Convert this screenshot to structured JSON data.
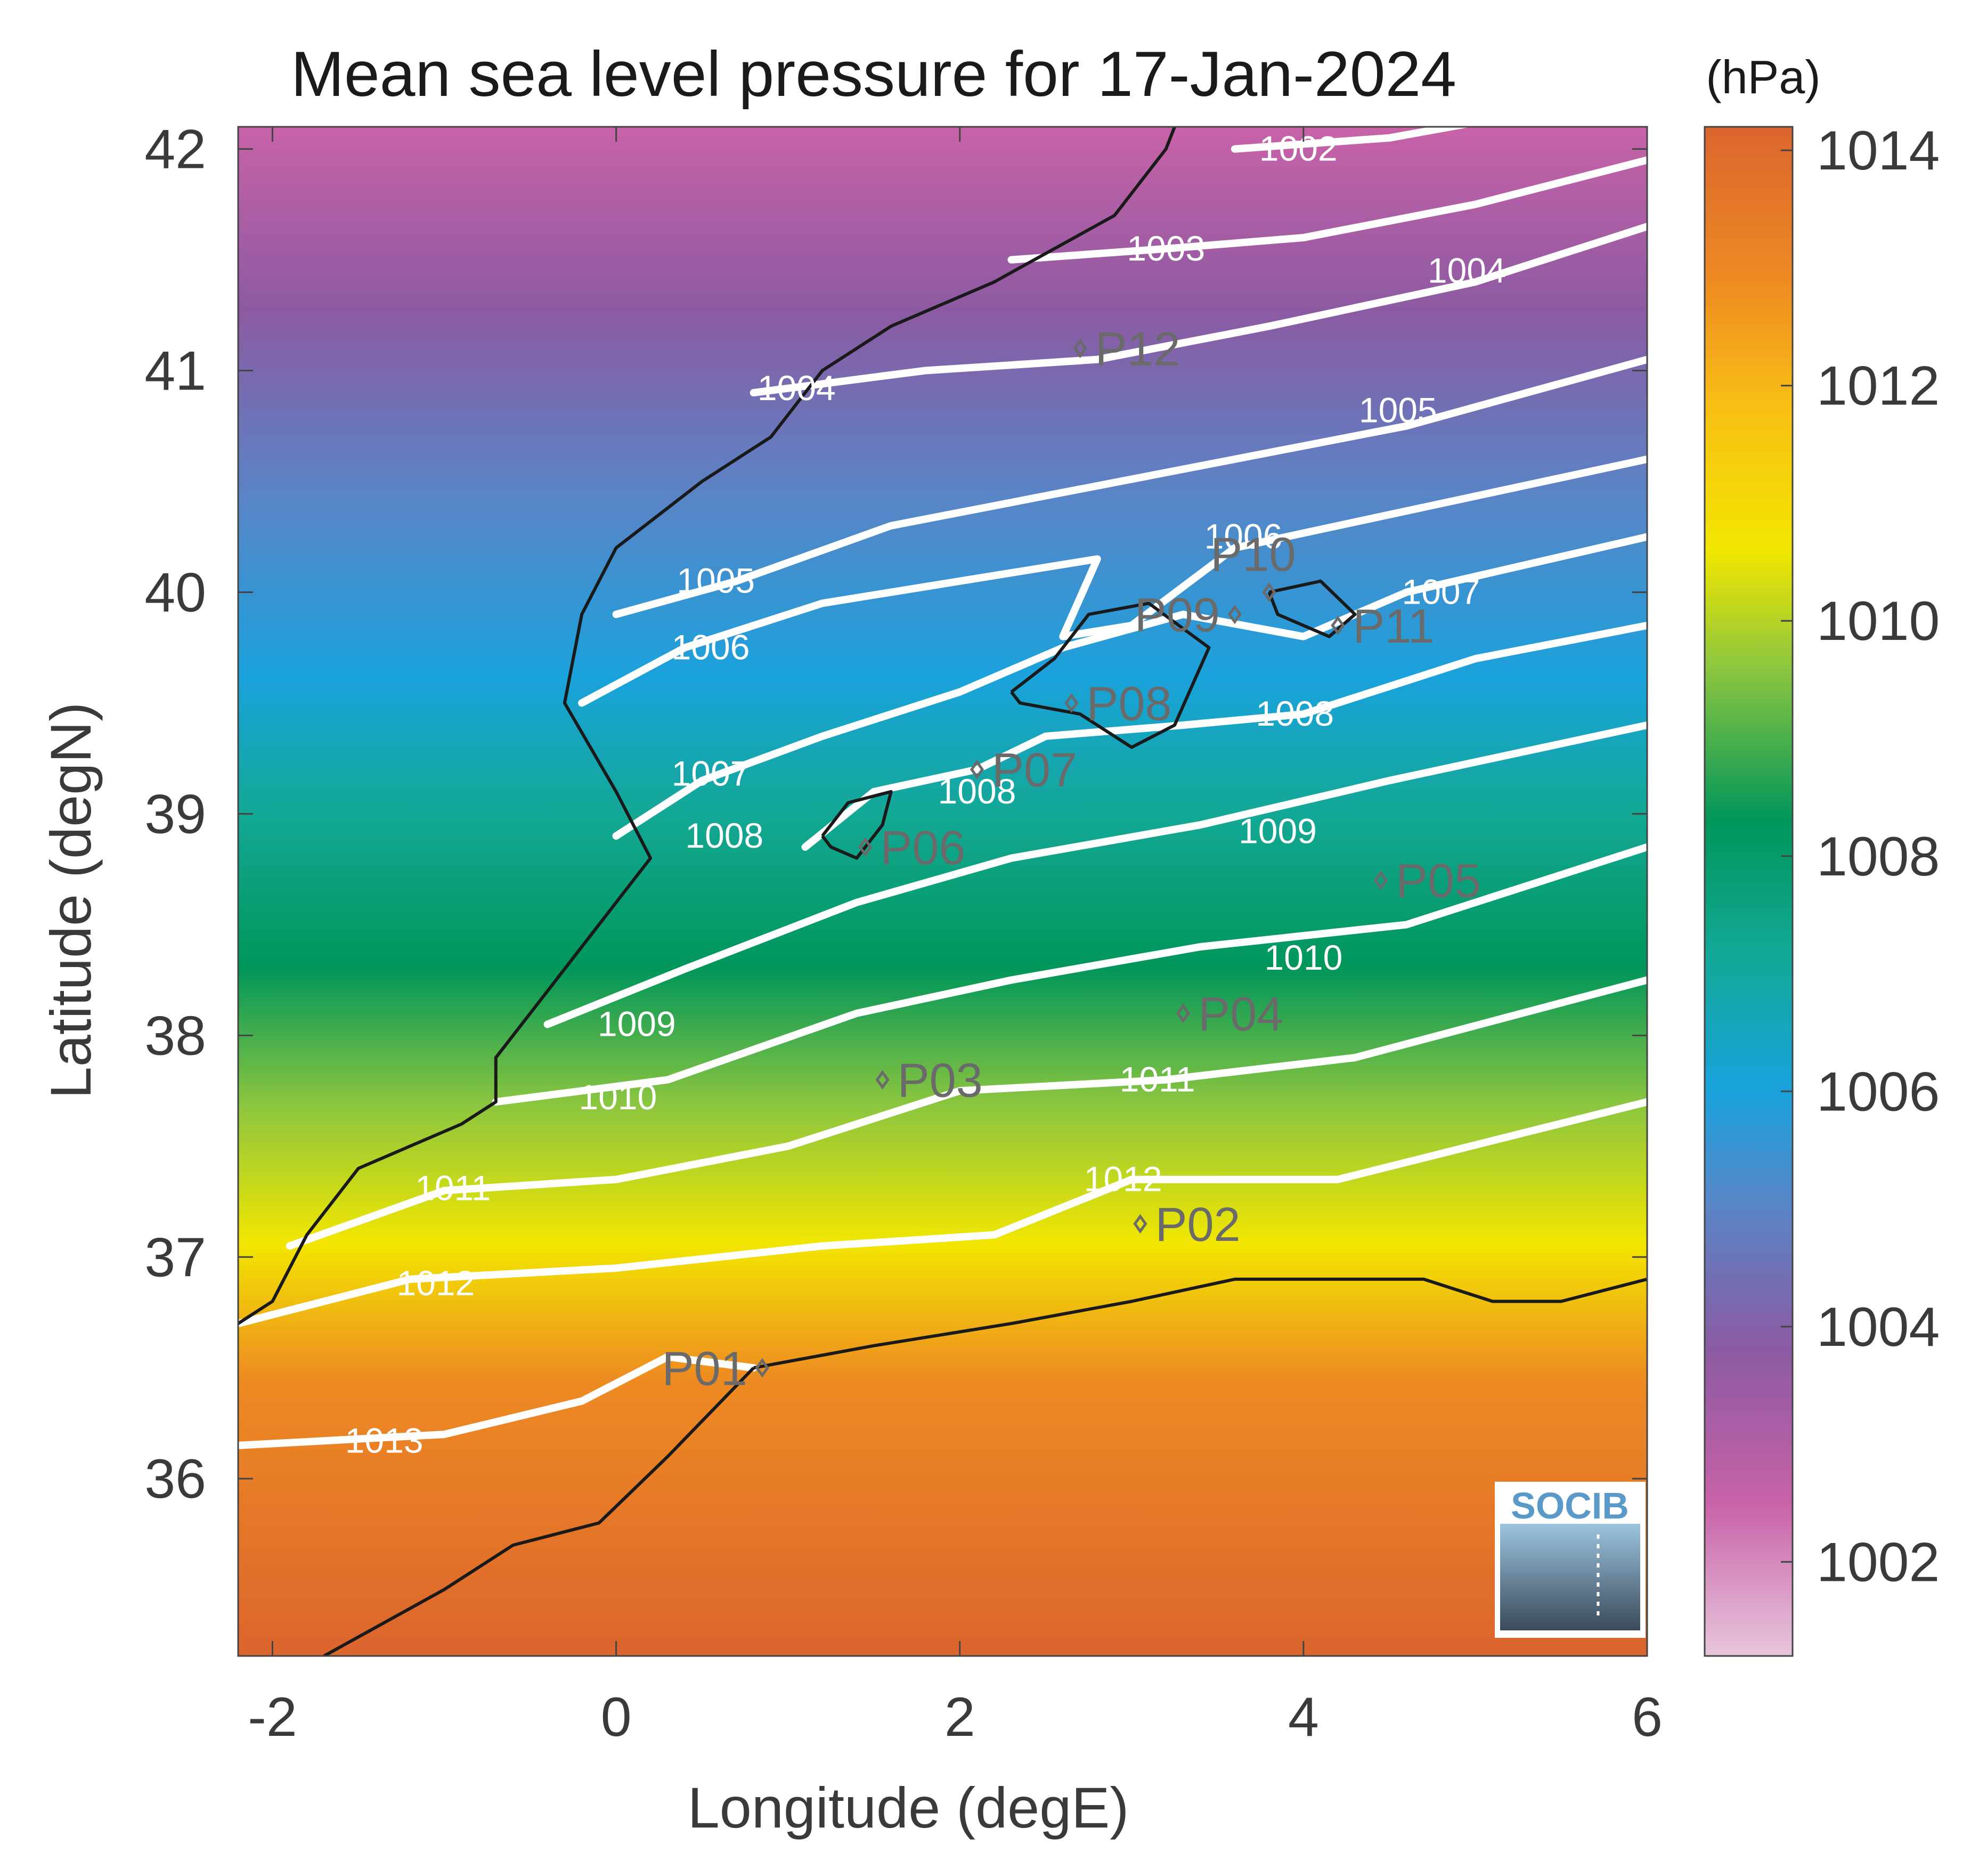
{
  "title": "Mean sea level pressure for 17-Jan-2024",
  "xlabel": "Longitude (degE)",
  "ylabel": "Latitude (degN)",
  "xlim": [
    -2.2,
    6.0
  ],
  "ylim": [
    35.2,
    42.1
  ],
  "xticks": [
    "-2",
    "0",
    "2",
    "4",
    "6"
  ],
  "xtick_values": [
    -2,
    0,
    2,
    4,
    6
  ],
  "yticks": [
    "36",
    "37",
    "38",
    "39",
    "40",
    "41",
    "42"
  ],
  "ytick_values": [
    36,
    37,
    38,
    39,
    40,
    41,
    42
  ],
  "colorbar": {
    "unit": "(hPa)",
    "range": [
      1001.2,
      1014.2
    ],
    "ticks": [
      "1002",
      "1004",
      "1006",
      "1008",
      "1010",
      "1012",
      "1014"
    ],
    "tick_values": [
      1002,
      1004,
      1006,
      1008,
      1010,
      1012,
      1014
    ],
    "stops": [
      {
        "v": 1001.2,
        "c": "#e8c6dc"
      },
      {
        "v": 1002.5,
        "c": "#c862a8"
      },
      {
        "v": 1003.8,
        "c": "#8c5aa2"
      },
      {
        "v": 1005.0,
        "c": "#5a84c6"
      },
      {
        "v": 1006.0,
        "c": "#1aa2dc"
      },
      {
        "v": 1007.2,
        "c": "#13a895"
      },
      {
        "v": 1008.3,
        "c": "#00965a"
      },
      {
        "v": 1009.6,
        "c": "#8cc63f"
      },
      {
        "v": 1010.6,
        "c": "#f2e600"
      },
      {
        "v": 1011.8,
        "c": "#f8c014"
      },
      {
        "v": 1012.9,
        "c": "#ee8a22"
      },
      {
        "v": 1014.2,
        "c": "#db652e"
      }
    ]
  },
  "contours": [
    {
      "label": "1002",
      "points": [
        [
          3.6,
          42.0
        ],
        [
          4.5,
          42.05
        ],
        [
          5.0,
          42.12
        ]
      ],
      "labels_at": [
        [
          3.97,
          42.0
        ]
      ]
    },
    {
      "label": "1003",
      "points": [
        [
          2.3,
          41.5
        ],
        [
          3.2,
          41.55
        ],
        [
          4.0,
          41.6
        ],
        [
          5.0,
          41.75
        ],
        [
          6.0,
          41.95
        ]
      ],
      "labels_at": [
        [
          3.2,
          41.55
        ]
      ]
    },
    {
      "label": "1004",
      "points": [
        [
          0.8,
          40.9
        ],
        [
          1.8,
          41.0
        ],
        [
          2.8,
          41.05
        ],
        [
          3.8,
          41.2
        ],
        [
          5.0,
          41.4
        ],
        [
          6.0,
          41.65
        ]
      ],
      "labels_at": [
        [
          1.05,
          40.92
        ],
        [
          4.95,
          41.45
        ]
      ]
    },
    {
      "label": "1005",
      "points": [
        [
          0.0,
          39.9
        ],
        [
          0.7,
          40.05
        ],
        [
          1.6,
          40.3
        ],
        [
          2.6,
          40.45
        ],
        [
          3.6,
          40.6
        ],
        [
          4.6,
          40.75
        ],
        [
          6.0,
          41.05
        ]
      ],
      "labels_at": [
        [
          0.58,
          40.05
        ],
        [
          4.55,
          40.82
        ]
      ]
    },
    {
      "label": "1006",
      "points": [
        [
          -0.2,
          39.5
        ],
        [
          0.4,
          39.75
        ],
        [
          1.2,
          39.95
        ],
        [
          2.0,
          40.05
        ],
        [
          2.8,
          40.15
        ],
        [
          2.6,
          39.8
        ],
        [
          3.0,
          39.85
        ],
        [
          3.6,
          40.2
        ],
        [
          4.5,
          40.35
        ],
        [
          6.0,
          40.6
        ]
      ],
      "labels_at": [
        [
          0.55,
          39.75
        ],
        [
          3.65,
          40.25
        ]
      ]
    },
    {
      "label": "1007",
      "points": [
        [
          0.0,
          38.9
        ],
        [
          0.5,
          39.15
        ],
        [
          1.2,
          39.35
        ],
        [
          2.0,
          39.55
        ],
        [
          2.6,
          39.75
        ],
        [
          3.3,
          39.9
        ],
        [
          4.0,
          39.8
        ],
        [
          4.6,
          40.0
        ],
        [
          6.0,
          40.25
        ]
      ],
      "labels_at": [
        [
          0.55,
          39.18
        ],
        [
          4.8,
          40.0
        ]
      ]
    },
    {
      "label": "1008",
      "points": [
        [
          1.1,
          38.85
        ],
        [
          1.5,
          39.1
        ],
        [
          2.1,
          39.2
        ],
        [
          2.5,
          39.35
        ],
        [
          3.3,
          39.4
        ],
        [
          4.0,
          39.45
        ],
        [
          5.0,
          39.7
        ],
        [
          6.0,
          39.85
        ]
      ],
      "labels_at": [
        [
          0.63,
          38.9
        ],
        [
          2.1,
          39.1
        ],
        [
          3.95,
          39.45
        ]
      ]
    },
    {
      "label": "1009",
      "points": [
        [
          -0.4,
          38.05
        ],
        [
          0.4,
          38.3
        ],
        [
          1.4,
          38.6
        ],
        [
          2.3,
          38.8
        ],
        [
          3.4,
          38.95
        ],
        [
          4.5,
          39.15
        ],
        [
          6.0,
          39.4
        ]
      ],
      "labels_at": [
        [
          0.12,
          38.05
        ],
        [
          3.85,
          38.92
        ]
      ]
    },
    {
      "label": "1010",
      "points": [
        [
          -0.7,
          37.7
        ],
        [
          0.3,
          37.8
        ],
        [
          1.4,
          38.1
        ],
        [
          2.3,
          38.25
        ],
        [
          3.4,
          38.4
        ],
        [
          4.6,
          38.5
        ],
        [
          6.0,
          38.85
        ]
      ],
      "labels_at": [
        [
          0.01,
          37.72
        ],
        [
          4.0,
          38.35
        ]
      ]
    },
    {
      "label": "1011",
      "points": [
        [
          -1.9,
          37.05
        ],
        [
          -1.0,
          37.3
        ],
        [
          0.0,
          37.35
        ],
        [
          1.0,
          37.5
        ],
        [
          2.0,
          37.75
        ],
        [
          3.2,
          37.8
        ],
        [
          4.3,
          37.9
        ],
        [
          6.0,
          38.25
        ]
      ],
      "labels_at": [
        [
          -0.95,
          37.31
        ],
        [
          3.15,
          37.8
        ]
      ]
    },
    {
      "label": "1012",
      "points": [
        [
          -2.2,
          36.7
        ],
        [
          -1.2,
          36.9
        ],
        [
          0.0,
          36.95
        ],
        [
          1.2,
          37.05
        ],
        [
          2.2,
          37.1
        ],
        [
          3.0,
          37.35
        ],
        [
          4.2,
          37.35
        ],
        [
          6.0,
          37.7
        ]
      ],
      "labels_at": [
        [
          -1.05,
          36.88
        ],
        [
          2.95,
          37.35
        ]
      ]
    },
    {
      "label": "1013",
      "points": [
        [
          -2.2,
          36.15
        ],
        [
          -1.0,
          36.2
        ],
        [
          -0.2,
          36.35
        ],
        [
          0.3,
          36.55
        ],
        [
          0.8,
          36.5
        ]
      ],
      "labels_at": [
        [
          -1.35,
          36.17
        ]
      ]
    }
  ],
  "stations": [
    {
      "name": "P01",
      "lon": 0.85,
      "lat": 36.5,
      "side": "left"
    },
    {
      "name": "P02",
      "lon": 3.05,
      "lat": 37.15,
      "side": "right"
    },
    {
      "name": "P03",
      "lon": 1.55,
      "lat": 37.8,
      "side": "right"
    },
    {
      "name": "P04",
      "lon": 3.3,
      "lat": 38.1,
      "side": "right"
    },
    {
      "name": "P05",
      "lon": 4.45,
      "lat": 38.7,
      "side": "right"
    },
    {
      "name": "P06",
      "lon": 1.45,
      "lat": 38.85,
      "side": "right"
    },
    {
      "name": "P07",
      "lon": 2.1,
      "lat": 39.2,
      "side": "right"
    },
    {
      "name": "P08",
      "lon": 2.65,
      "lat": 39.5,
      "side": "right"
    },
    {
      "name": "P09",
      "lon": 3.6,
      "lat": 39.9,
      "side": "left"
    },
    {
      "name": "P10",
      "lon": 3.8,
      "lat": 40.0,
      "side": "above"
    },
    {
      "name": "P11",
      "lon": 4.2,
      "lat": 39.85,
      "side": "right"
    },
    {
      "name": "P12",
      "lon": 2.7,
      "lat": 41.1,
      "side": "right"
    }
  ],
  "coastlines": [
    {
      "name": "iberia",
      "points": [
        [
          -2.2,
          36.7
        ],
        [
          -2.0,
          36.8
        ],
        [
          -1.8,
          37.1
        ],
        [
          -1.5,
          37.4
        ],
        [
          -0.9,
          37.6
        ],
        [
          -0.7,
          37.7
        ],
        [
          -0.7,
          37.9
        ],
        [
          -0.5,
          38.1
        ],
        [
          -0.3,
          38.3
        ],
        [
          0.0,
          38.6
        ],
        [
          0.2,
          38.8
        ],
        [
          0.0,
          39.1
        ],
        [
          -0.3,
          39.5
        ],
        [
          -0.2,
          39.9
        ],
        [
          0.0,
          40.2
        ],
        [
          0.5,
          40.5
        ],
        [
          0.9,
          40.7
        ],
        [
          1.2,
          41.0
        ],
        [
          1.6,
          41.2
        ],
        [
          2.2,
          41.4
        ],
        [
          2.9,
          41.7
        ],
        [
          3.2,
          42.0
        ],
        [
          3.25,
          42.1
        ]
      ]
    },
    {
      "name": "africa",
      "points": [
        [
          0.8,
          36.5
        ],
        [
          1.5,
          36.6
        ],
        [
          2.3,
          36.7
        ],
        [
          3.0,
          36.8
        ],
        [
          3.6,
          36.9
        ],
        [
          4.0,
          36.9
        ],
        [
          4.7,
          36.9
        ],
        [
          5.1,
          36.8
        ],
        [
          5.5,
          36.8
        ],
        [
          6.0,
          36.9
        ]
      ]
    },
    {
      "name": "africa-west",
      "points": [
        [
          -1.7,
          35.2
        ],
        [
          -1.0,
          35.5
        ],
        [
          -0.6,
          35.7
        ],
        [
          -0.1,
          35.8
        ],
        [
          0.3,
          36.1
        ],
        [
          0.8,
          36.5
        ]
      ]
    },
    {
      "name": "ibiza",
      "points": [
        [
          1.2,
          38.9
        ],
        [
          1.35,
          39.05
        ],
        [
          1.6,
          39.1
        ],
        [
          1.55,
          38.95
        ],
        [
          1.4,
          38.8
        ],
        [
          1.25,
          38.85
        ],
        [
          1.2,
          38.9
        ]
      ]
    },
    {
      "name": "mallorca",
      "points": [
        [
          2.3,
          39.55
        ],
        [
          2.55,
          39.7
        ],
        [
          2.75,
          39.9
        ],
        [
          3.1,
          39.95
        ],
        [
          3.45,
          39.75
        ],
        [
          3.25,
          39.4
        ],
        [
          3.0,
          39.3
        ],
        [
          2.7,
          39.45
        ],
        [
          2.35,
          39.5
        ],
        [
          2.3,
          39.55
        ]
      ]
    },
    {
      "name": "menorca",
      "points": [
        [
          3.8,
          40.0
        ],
        [
          4.1,
          40.05
        ],
        [
          4.3,
          39.9
        ],
        [
          4.15,
          39.8
        ],
        [
          3.85,
          39.9
        ],
        [
          3.8,
          40.0
        ]
      ]
    }
  ],
  "logo": {
    "text": "SOCIB"
  }
}
